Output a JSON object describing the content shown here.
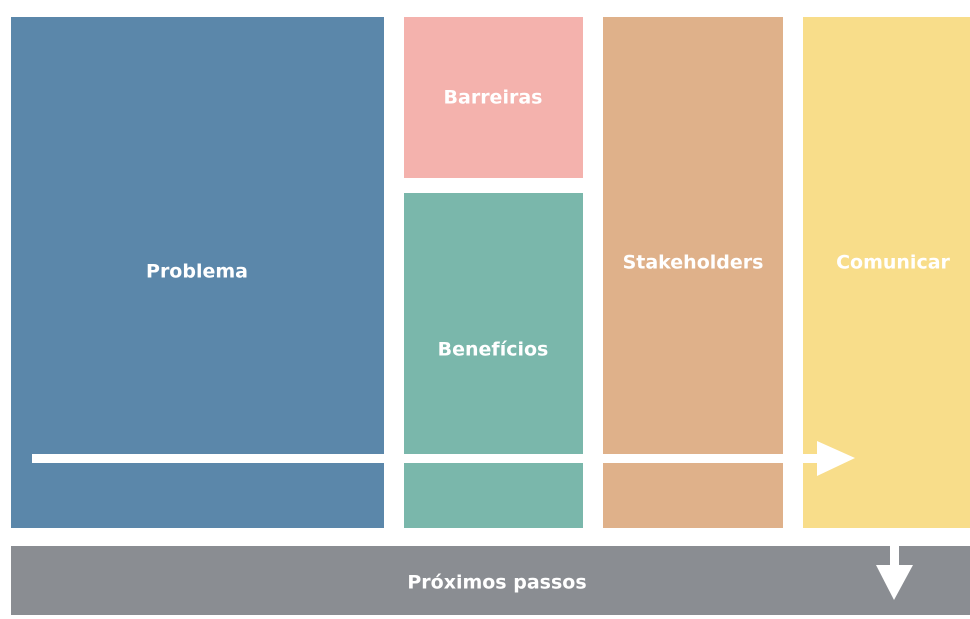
{
  "blocks": {
    "problema": "Problema",
    "barreiras": "Barreiras",
    "beneficios": "Benefícios",
    "stakeholders": "Stakeholders",
    "comunicar": "Comunicar",
    "proximos": "Próximos passos"
  }
}
